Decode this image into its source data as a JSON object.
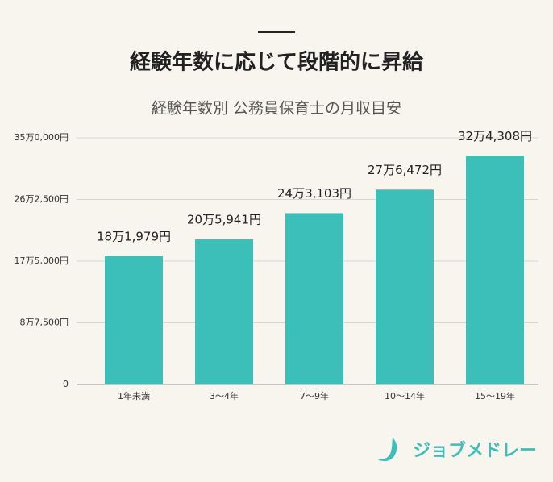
{
  "header": {
    "title": "経験年数に応じて段階的に昇給"
  },
  "chart_data": {
    "type": "bar",
    "title": "経験年数別 公務員保育士の月収目安",
    "categories": [
      "1年未満",
      "3〜4年",
      "7〜9年",
      "10〜14年",
      "15〜19年"
    ],
    "values": [
      181979,
      205941,
      243103,
      276472,
      324308
    ],
    "value_labels": [
      "18万1,979円",
      "20万5,941円",
      "24万3,103円",
      "27万6,472円",
      "32万4,308円"
    ],
    "color": "#3cbfb8",
    "ylim": [
      0,
      350000
    ],
    "yticks": [
      0,
      {
        "value": 87500,
        "label": "8万7,500円"
      },
      {
        "value": 175000,
        "label": "17万5,000円"
      },
      {
        "value": 262500,
        "label": "26万2,500円"
      },
      {
        "value": 350000,
        "label": "35万0,000円"
      }
    ],
    "grid": true
  },
  "footer": {
    "logo": "ジョブメドレー"
  }
}
